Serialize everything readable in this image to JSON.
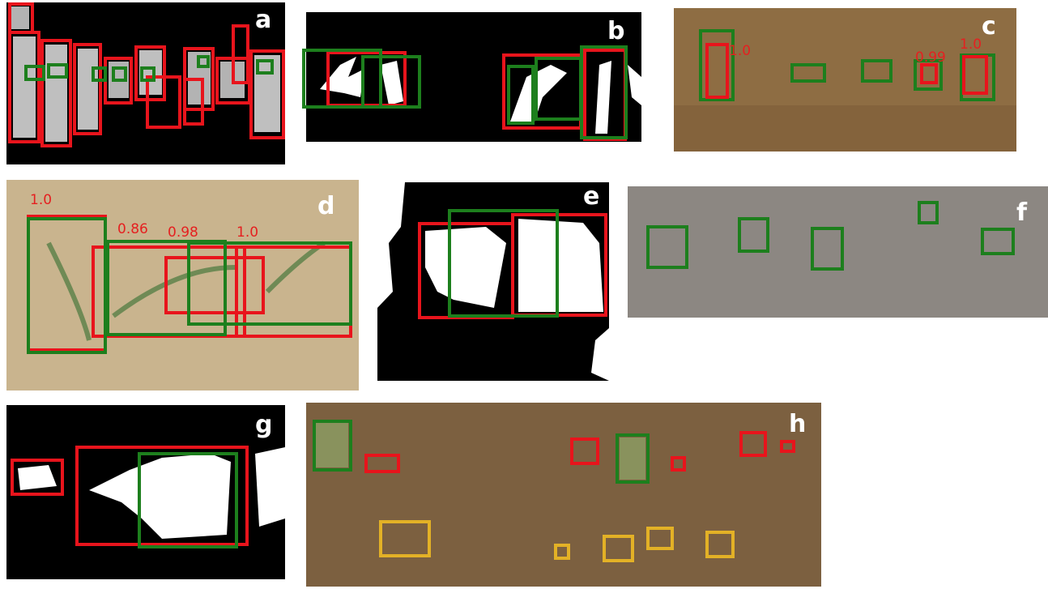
{
  "panels": [
    {
      "label": "a"
    },
    {
      "label": "b"
    },
    {
      "label": "c",
      "scores": [
        "1.0",
        "0.99",
        "1.0"
      ]
    },
    {
      "label": "d",
      "scores": [
        "1.0",
        "0.86",
        "0.98",
        "1.0"
      ]
    },
    {
      "label": "e"
    },
    {
      "label": "f"
    },
    {
      "label": "g"
    },
    {
      "label": "h"
    }
  ]
}
